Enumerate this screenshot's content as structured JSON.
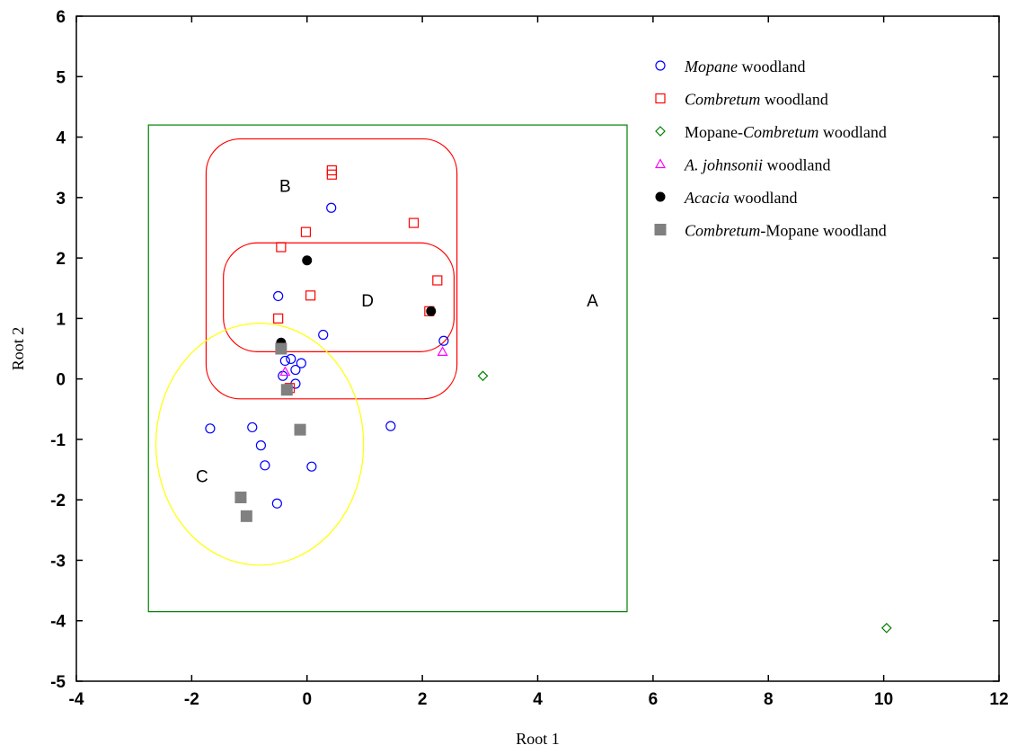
{
  "chart_data": {
    "type": "scatter",
    "xlabel": "Root 1",
    "ylabel": "Root 2",
    "xlim": [
      -4,
      12
    ],
    "ylim": [
      -5,
      6
    ],
    "x_ticks": [
      "-4",
      "-2",
      "0",
      "2",
      "4",
      "6",
      "8",
      "10",
      "12"
    ],
    "y_ticks": [
      "6",
      "5",
      "4",
      "3",
      "2",
      "1",
      "0",
      "-1",
      "-2",
      "-3",
      "-4",
      "-5"
    ],
    "grid": false,
    "legend_position": "top-right",
    "series": [
      {
        "name": "Mopane woodland",
        "legend_parts": [
          {
            "text": "Mopane",
            "italic": true
          },
          {
            "text": " woodland",
            "italic": false
          }
        ],
        "marker": "circle-open",
        "color": "#0000ff",
        "points": [
          [
            0.42,
            2.83
          ],
          [
            -0.5,
            1.37
          ],
          [
            0.28,
            0.73
          ],
          [
            2.37,
            0.63
          ],
          [
            -0.38,
            0.3
          ],
          [
            -0.28,
            0.33
          ],
          [
            -0.1,
            0.26
          ],
          [
            -0.2,
            0.15
          ],
          [
            -0.42,
            0.05
          ],
          [
            -0.2,
            -0.08
          ],
          [
            -1.68,
            -0.82
          ],
          [
            -0.95,
            -0.8
          ],
          [
            1.45,
            -0.78
          ],
          [
            -0.8,
            -1.1
          ],
          [
            -0.73,
            -1.43
          ],
          [
            0.08,
            -1.45
          ],
          [
            -0.52,
            -2.06
          ]
        ]
      },
      {
        "name": "Combretum woodland",
        "legend_parts": [
          {
            "text": "Combretum",
            "italic": true
          },
          {
            "text": " woodland",
            "italic": false
          }
        ],
        "marker": "square-open",
        "color": "#ff0000",
        "points": [
          [
            0.43,
            3.45
          ],
          [
            0.43,
            3.38
          ],
          [
            1.85,
            2.58
          ],
          [
            -0.02,
            2.43
          ],
          [
            -0.45,
            2.18
          ],
          [
            2.26,
            1.63
          ],
          [
            0.06,
            1.38
          ],
          [
            -0.5,
            1.0
          ],
          [
            2.12,
            1.12
          ],
          [
            -0.3,
            -0.15
          ]
        ]
      },
      {
        "name": "Mopane-Combretum woodland",
        "legend_parts": [
          {
            "text": "Mopane-",
            "italic": false
          },
          {
            "text": "Combretum",
            "italic": true
          },
          {
            "text": " woodland",
            "italic": false
          }
        ],
        "marker": "diamond-open",
        "color": "#008000",
        "points": [
          [
            3.05,
            0.05
          ],
          [
            10.05,
            -4.12
          ]
        ]
      },
      {
        "name": "A. johnsonii woodland",
        "legend_parts": [
          {
            "text": "A. johnsonii",
            "italic": true
          },
          {
            "text": " woodland",
            "italic": false
          }
        ],
        "marker": "triangle-open",
        "color": "#ff00ff",
        "points": [
          [
            2.35,
            0.45
          ],
          [
            -0.38,
            0.12
          ]
        ]
      },
      {
        "name": "Acacia woodland",
        "legend_parts": [
          {
            "text": "Acacia",
            "italic": true
          },
          {
            "text": " woodland",
            "italic": false
          }
        ],
        "marker": "circle-filled",
        "color": "#000000",
        "points": [
          [
            0.0,
            1.96
          ],
          [
            2.15,
            1.12
          ],
          [
            -0.45,
            0.6
          ]
        ]
      },
      {
        "name": "Combretum-Mopane woodland",
        "legend_parts": [
          {
            "text": "Combretum",
            "italic": true
          },
          {
            "text": "-Mopane woodland",
            "italic": false
          }
        ],
        "marker": "square-filled",
        "color": "#808080",
        "points": [
          [
            -0.45,
            0.5
          ],
          [
            -0.35,
            -0.18
          ],
          [
            -0.12,
            -0.84
          ],
          [
            -1.15,
            -1.96
          ],
          [
            -1.05,
            -2.27
          ]
        ]
      }
    ],
    "regions": [
      {
        "label": "A",
        "shape": "rect",
        "color": "#008000",
        "x": [
          -2.75,
          5.55
        ],
        "y": [
          -3.85,
          4.2
        ],
        "label_at": [
          4.95,
          1.3
        ]
      },
      {
        "label": "B",
        "shape": "roundrect",
        "color": "#ff0000",
        "x": [
          -1.75,
          2.6
        ],
        "y": [
          -0.33,
          3.97
        ],
        "label_at": [
          -0.38,
          3.2
        ]
      },
      {
        "label": "D",
        "shape": "roundrect",
        "color": "#ff0000",
        "x": [
          -1.45,
          2.55
        ],
        "y": [
          0.45,
          2.25
        ],
        "label_at": [
          1.05,
          1.3
        ]
      },
      {
        "label": "C",
        "shape": "ellipse",
        "color": "#ffff00",
        "center": [
          -0.82,
          -1.08
        ],
        "radii": [
          1.8,
          2.0
        ],
        "label_at": [
          -1.82,
          -1.6
        ]
      }
    ]
  }
}
